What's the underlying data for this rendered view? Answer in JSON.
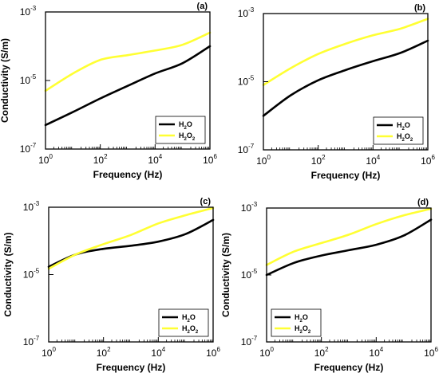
{
  "chart_data": [
    {
      "type": "line",
      "panel_label": "(a)",
      "xlabel": "Frequency (Hz)",
      "ylabel": "Conductivity (S/m)",
      "xscale": "log",
      "yscale": "log",
      "xlim": [
        1,
        1000000
      ],
      "ylim": [
        1e-07,
        0.001
      ],
      "x_ticks": [
        {
          "base": "10",
          "exp": "0"
        },
        {
          "base": "10",
          "exp": "2"
        },
        {
          "base": "10",
          "exp": "4"
        },
        {
          "base": "10",
          "exp": "6"
        }
      ],
      "y_ticks": [
        {
          "base": "10",
          "exp": "-7"
        },
        {
          "base": "10",
          "exp": "-5"
        },
        {
          "base": "10",
          "exp": "-3"
        }
      ],
      "legend_position": "bottom-right",
      "series": [
        {
          "name": "H2O",
          "label_main": "H",
          "label_sub": "2",
          "label_tail": "O",
          "label_sub2": "",
          "color": "#000000",
          "x": [
            1,
            10,
            100,
            1000,
            10000,
            100000,
            1000000
          ],
          "y": [
            5e-07,
            1.2e-06,
            3e-06,
            7e-06,
            1.6e-05,
            3.2e-05,
            0.0001
          ]
        },
        {
          "name": "H2O2",
          "label_main": "H",
          "label_sub": "2",
          "label_tail": "O",
          "label_sub2": "2",
          "color": "#ffff33",
          "x": [
            1,
            10,
            100,
            1000,
            10000,
            100000,
            1000000
          ],
          "y": [
            5e-06,
            1.6e-05,
            4e-05,
            5.5e-05,
            7.5e-05,
            0.00011,
            0.00025
          ]
        }
      ]
    },
    {
      "type": "line",
      "panel_label": "(b)",
      "xlabel": "Frequency (Hz)",
      "ylabel": "",
      "xscale": "log",
      "yscale": "log",
      "xlim": [
        1,
        1000000
      ],
      "ylim": [
        1e-07,
        0.001
      ],
      "x_ticks": [
        {
          "base": "10",
          "exp": "0"
        },
        {
          "base": "10",
          "exp": "2"
        },
        {
          "base": "10",
          "exp": "4"
        },
        {
          "base": "10",
          "exp": "6"
        }
      ],
      "y_ticks": [
        {
          "base": "10",
          "exp": "-7"
        },
        {
          "base": "10",
          "exp": "-5"
        },
        {
          "base": "10",
          "exp": "-3"
        }
      ],
      "legend_position": "bottom-right",
      "series": [
        {
          "name": "H2O",
          "label_main": "H",
          "label_sub": "2",
          "label_tail": "O",
          "label_sub2": "",
          "color": "#000000",
          "x": [
            1,
            10,
            100,
            1000,
            10000,
            100000,
            1000000
          ],
          "y": [
            1e-06,
            4e-06,
            1.1e-05,
            2.2e-05,
            4e-05,
            7e-05,
            0.00016
          ]
        },
        {
          "name": "H2O2",
          "label_main": "H",
          "label_sub": "2",
          "label_tail": "O",
          "label_sub2": "2",
          "color": "#ffff33",
          "x": [
            1,
            10,
            100,
            1000,
            10000,
            100000,
            1000000
          ],
          "y": [
            8e-06,
            2.5e-05,
            6.5e-05,
            0.00013,
            0.00023,
            0.00036,
            0.0007
          ]
        }
      ]
    },
    {
      "type": "line",
      "panel_label": "(c)",
      "xlabel": "Frequency (Hz)",
      "ylabel": "Conductivity (S/m)",
      "xscale": "log",
      "yscale": "log",
      "xlim": [
        1,
        1000000
      ],
      "ylim": [
        1e-07,
        0.001
      ],
      "x_ticks": [
        {
          "base": "10",
          "exp": "0"
        },
        {
          "base": "10",
          "exp": "2"
        },
        {
          "base": "10",
          "exp": "4"
        },
        {
          "base": "10",
          "exp": "6"
        }
      ],
      "y_ticks": [
        {
          "base": "10",
          "exp": "-7"
        },
        {
          "base": "10",
          "exp": "-5"
        },
        {
          "base": "10",
          "exp": "-3"
        }
      ],
      "legend_position": "bottom-right",
      "series": [
        {
          "name": "H2O",
          "label_main": "H",
          "label_sub": "2",
          "label_tail": "O",
          "label_sub2": "",
          "color": "#000000",
          "x": [
            1,
            10,
            100,
            1000,
            10000,
            100000,
            1000000
          ],
          "y": [
            1.7e-05,
            4e-05,
            5.8e-05,
            7.2e-05,
            9.5e-05,
            0.00016,
            0.00042
          ]
        },
        {
          "name": "H2O2",
          "label_main": "H",
          "label_sub": "2",
          "label_tail": "O",
          "label_sub2": "2",
          "color": "#ffff33",
          "x": [
            1,
            10,
            100,
            1000,
            10000,
            100000,
            1000000
          ],
          "y": [
            1.5e-05,
            4e-05,
            8e-05,
            0.00015,
            0.00033,
            0.00058,
            0.00095
          ]
        }
      ]
    },
    {
      "type": "line",
      "panel_label": "(d)",
      "xlabel": "Frequency (Hz)",
      "ylabel": "Conductivity (S/m)",
      "xscale": "log",
      "yscale": "log",
      "xlim": [
        1,
        1000000
      ],
      "ylim": [
        1e-07,
        0.001
      ],
      "x_ticks": [
        {
          "base": "10",
          "exp": "0"
        },
        {
          "base": "10",
          "exp": "2"
        },
        {
          "base": "10",
          "exp": "4"
        },
        {
          "base": "10",
          "exp": "6"
        }
      ],
      "y_ticks": [
        {
          "base": "10",
          "exp": "-7"
        },
        {
          "base": "10",
          "exp": "-5"
        },
        {
          "base": "10",
          "exp": "-3"
        }
      ],
      "legend_position": "bottom-left",
      "series": [
        {
          "name": "H2O",
          "label_main": "H",
          "label_sub": "2",
          "label_tail": "O",
          "label_sub2": "",
          "color": "#000000",
          "x": [
            1,
            10,
            100,
            1000,
            10000,
            100000,
            1000000
          ],
          "y": [
            1e-05,
            2.3e-05,
            3.8e-05,
            5.5e-05,
            8e-05,
            0.00015,
            0.00045
          ]
        },
        {
          "name": "H2O2",
          "label_main": "H",
          "label_sub": "2",
          "label_tail": "O",
          "label_sub2": "2",
          "color": "#ffff33",
          "x": [
            1,
            10,
            100,
            1000,
            10000,
            100000,
            1000000
          ],
          "y": [
            2e-05,
            5e-05,
            9e-05,
            0.00016,
            0.00033,
            0.0006,
            0.00095
          ]
        }
      ]
    }
  ]
}
